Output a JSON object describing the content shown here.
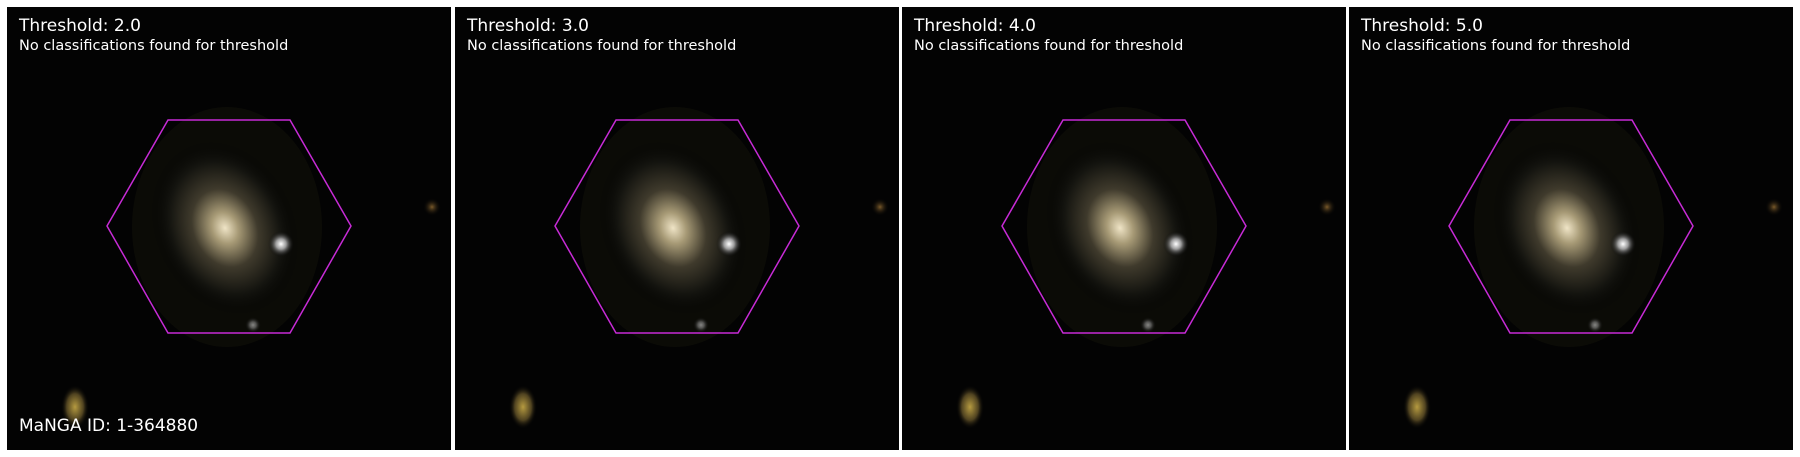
{
  "panels": [
    {
      "title": "Threshold: 2.0",
      "message": "No classifications found for threshold"
    },
    {
      "title": "Threshold: 3.0",
      "message": "No classifications found for threshold"
    },
    {
      "title": "Threshold: 4.0",
      "message": "No classifications found for threshold"
    },
    {
      "title": "Threshold: 5.0",
      "message": "No classifications found for threshold"
    }
  ],
  "manga_id": "MaNGA ID: 1-364880",
  "colors": {
    "background": "#030303",
    "hexagon": "#c72bd6",
    "galaxy_core": "#e8dcc0",
    "frame": "#ffffff"
  }
}
